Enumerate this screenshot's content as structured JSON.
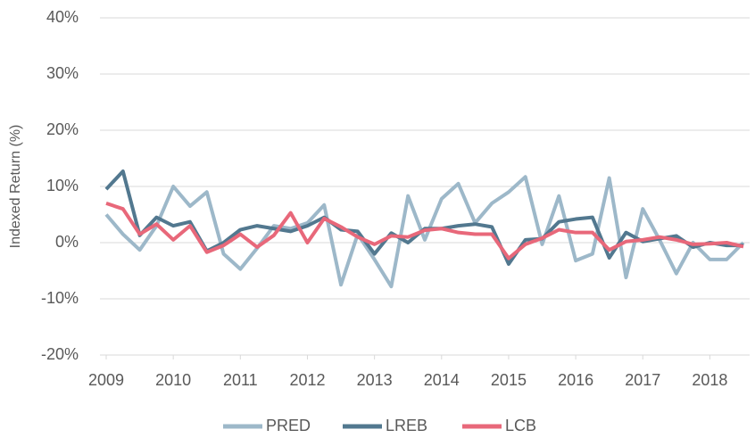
{
  "chart_data": {
    "type": "line",
    "y_label": "Indexed Return (%)",
    "x": [
      2009,
      2009.25,
      2009.5,
      2009.75,
      2010,
      2010.25,
      2010.5,
      2010.75,
      2011,
      2011.25,
      2011.5,
      2011.75,
      2012,
      2012.25,
      2012.5,
      2012.75,
      2013,
      2013.25,
      2013.5,
      2013.75,
      2014,
      2014.25,
      2014.5,
      2014.75,
      2015,
      2015.25,
      2015.5,
      2015.75,
      2016,
      2016.25,
      2016.5,
      2016.75,
      2017,
      2017.25,
      2017.5,
      2017.75,
      2018,
      2018.25,
      2018.5
    ],
    "series": [
      {
        "name": "PRED",
        "color": "#9db8c9",
        "values": [
          5,
          1.5,
          -1.3,
          3,
          10,
          6.5,
          9,
          -2,
          -4.7,
          -1,
          3,
          2.5,
          3.5,
          6.7,
          -7.5,
          1.5,
          -3,
          -7.8,
          8.3,
          0.5,
          7.8,
          10.5,
          3.5,
          7,
          9,
          11.7,
          -0.3,
          8.3,
          -3.2,
          -2,
          11.5,
          -6.2,
          6,
          0.5,
          -5.5,
          0,
          -3,
          -3,
          0
        ]
      },
      {
        "name": "LREB",
        "color": "#52788f",
        "values": [
          9.5,
          12.7,
          1.3,
          4.5,
          3,
          3.7,
          -1.5,
          0,
          2.3,
          3,
          2.5,
          2,
          3,
          4.5,
          2.3,
          2,
          -2,
          1.7,
          0,
          2.5,
          2.5,
          3,
          3.3,
          2.8,
          -3.8,
          0.5,
          0.7,
          3.7,
          4.2,
          4.5,
          -2.7,
          1.8,
          0.2,
          0.7,
          1.2,
          -0.8,
          0,
          -0.5,
          -0.5
        ]
      },
      {
        "name": "LCB",
        "color": "#e8687a",
        "values": [
          7,
          6,
          1.5,
          3.3,
          0.5,
          3,
          -1.7,
          -0.5,
          1.5,
          -0.8,
          1.3,
          5.3,
          0,
          4.3,
          2.8,
          1,
          -0.3,
          1.2,
          1,
          2.2,
          2.5,
          1.8,
          1.5,
          1.5,
          -2.8,
          -0.3,
          0.8,
          2.3,
          1.8,
          1.8,
          -1.3,
          0.2,
          0.5,
          1,
          0.5,
          -0.3,
          -0.2,
          0,
          -0.7
        ]
      }
    ],
    "xlim": [
      2009,
      2018.5
    ],
    "xticks": [
      2009,
      2010,
      2011,
      2012,
      2013,
      2014,
      2015,
      2016,
      2017,
      2018
    ],
    "ylim": [
      -20,
      40
    ],
    "yticks": [
      {
        "value": -20,
        "label": "-20%"
      },
      {
        "value": -10,
        "label": "-10%"
      },
      {
        "value": 0,
        "label": "0%"
      },
      {
        "value": 10,
        "label": "10%"
      },
      {
        "value": 20,
        "label": "20%"
      },
      {
        "value": 30,
        "label": "30%"
      },
      {
        "value": 40,
        "label": "40%"
      }
    ],
    "grid": true,
    "legend": "bottom"
  }
}
